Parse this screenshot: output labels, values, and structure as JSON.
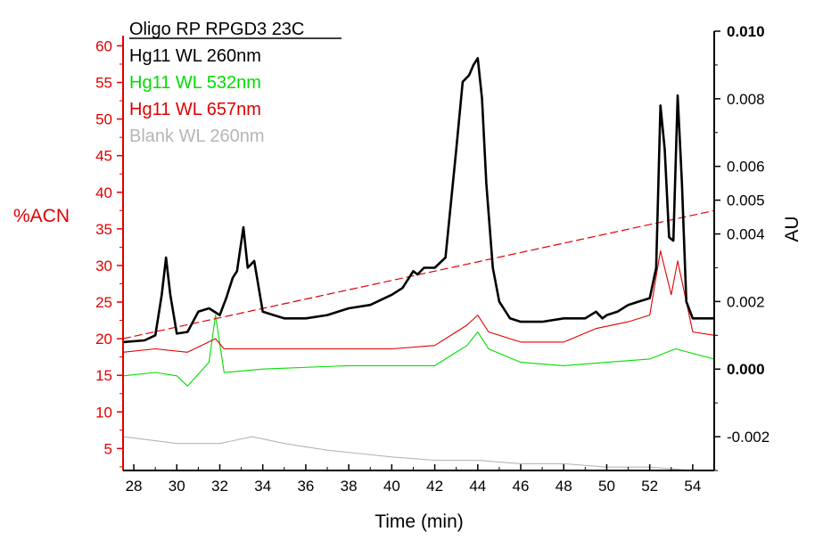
{
  "chart_data": {
    "type": "line",
    "title": "Oligo RP RPGD3 23C",
    "xlabel": "Time (min)",
    "ylabel_left": "%ACN",
    "ylabel_right": "AU",
    "xlim": [
      27.5,
      55
    ],
    "ylim_left": [
      2,
      62
    ],
    "ylim_right": [
      -0.003,
      0.01
    ],
    "x_ticks": [
      "28",
      "30",
      "32",
      "34",
      "36",
      "38",
      "40",
      "42",
      "44",
      "46",
      "48",
      "50",
      "52",
      "54"
    ],
    "y_left_ticks": [
      "5",
      "10",
      "15",
      "20",
      "25",
      "30",
      "35",
      "40",
      "45",
      "50",
      "55",
      "60"
    ],
    "y_right_ticks": [
      "-0.002",
      "0.000",
      "0.002",
      "0.004",
      "0.005",
      "0.006",
      "0.008",
      "0.010"
    ],
    "colors": {
      "left_axis": "#e00000",
      "right_axis": "#000000",
      "wl260": "#000000",
      "wl532": "#00dd00",
      "wl657": "#e00000",
      "blank": "#b5b5b5",
      "gradient": "#e00000"
    },
    "series": [
      {
        "name": "Hg11 WL 260nm",
        "axis": "right",
        "x": [
          27.5,
          28.5,
          29.0,
          29.3,
          29.5,
          29.7,
          30.0,
          30.5,
          31.0,
          31.5,
          32.0,
          32.3,
          32.6,
          32.8,
          33.1,
          33.3,
          33.6,
          34.0,
          34.5,
          35.0,
          36.0,
          37.0,
          38.0,
          39.0,
          40.0,
          40.5,
          41.0,
          41.2,
          41.5,
          42.0,
          42.5,
          43.0,
          43.3,
          43.6,
          43.8,
          44.0,
          44.2,
          44.4,
          44.7,
          45.0,
          45.5,
          46.0,
          47.0,
          48.0,
          49.0,
          49.5,
          49.8,
          50.0,
          50.5,
          51.0,
          51.5,
          52.0,
          52.3,
          52.5,
          52.7,
          52.9,
          53.1,
          53.3,
          53.5,
          53.7,
          54.0,
          54.5,
          55.0
        ],
        "y": [
          0.0008,
          0.00085,
          0.001,
          0.0022,
          0.0033,
          0.0022,
          0.00105,
          0.0011,
          0.0017,
          0.0018,
          0.0016,
          0.0021,
          0.0027,
          0.0029,
          0.0042,
          0.003,
          0.0032,
          0.0017,
          0.0016,
          0.0015,
          0.0015,
          0.0016,
          0.0018,
          0.0019,
          0.0022,
          0.0024,
          0.0029,
          0.0028,
          0.003,
          0.003,
          0.0033,
          0.0065,
          0.0085,
          0.0087,
          0.009,
          0.0092,
          0.008,
          0.0055,
          0.003,
          0.002,
          0.0015,
          0.0014,
          0.0014,
          0.0015,
          0.0015,
          0.0017,
          0.0015,
          0.0016,
          0.0017,
          0.0019,
          0.002,
          0.0021,
          0.003,
          0.0078,
          0.0065,
          0.0039,
          0.0038,
          0.0081,
          0.0055,
          0.002,
          0.0015,
          0.0015,
          0.0015
        ]
      },
      {
        "name": "Hg11 WL 532nm",
        "axis": "right",
        "x": [
          27.5,
          29.0,
          30.0,
          30.5,
          31.5,
          31.8,
          32.2,
          34.0,
          38.0,
          42.0,
          43.5,
          44.0,
          44.5,
          46.0,
          48.0,
          50.0,
          52.0,
          53.2,
          55.0
        ],
        "y": [
          -0.0002,
          -0.0001,
          -0.0002,
          -0.0005,
          0.0002,
          0.0016,
          -0.0001,
          0.0,
          0.0001,
          0.0001,
          0.0007,
          0.0011,
          0.0006,
          0.0002,
          0.0001,
          0.0002,
          0.0003,
          0.0006,
          0.0003
        ]
      },
      {
        "name": "Hg11 WL 657nm",
        "axis": "right",
        "x": [
          27.5,
          29.0,
          30.5,
          31.8,
          32.2,
          34.0,
          36.0,
          38.0,
          40.0,
          42.0,
          43.5,
          44.0,
          44.5,
          46.0,
          48.0,
          49.5,
          51.0,
          52.0,
          52.5,
          53.0,
          53.3,
          54.0,
          55.0
        ],
        "y": [
          0.0005,
          0.0006,
          0.0005,
          0.0009,
          0.0006,
          0.0006,
          0.0006,
          0.0006,
          0.0006,
          0.0007,
          0.0013,
          0.0016,
          0.0011,
          0.0008,
          0.0008,
          0.0012,
          0.0014,
          0.0016,
          0.0035,
          0.0022,
          0.0032,
          0.0011,
          0.001
        ]
      },
      {
        "name": "Blank WL 260nm",
        "axis": "right",
        "x": [
          27.5,
          30.0,
          32.0,
          33.5,
          35.0,
          37.0,
          38.5,
          40.0,
          42.0,
          44.0,
          46.0,
          48.0,
          50.0,
          52.0,
          54.0,
          55.0
        ],
        "y": [
          -0.002,
          -0.0022,
          -0.0022,
          -0.002,
          -0.0022,
          -0.0024,
          -0.0025,
          -0.0026,
          -0.0027,
          -0.0027,
          -0.0028,
          -0.0028,
          -0.0029,
          -0.0029,
          -0.003,
          -0.003
        ]
      },
      {
        "name": "%ACN gradient",
        "axis": "left",
        "style": "dashed",
        "x": [
          27.5,
          55.0
        ],
        "y": [
          20,
          37.5
        ]
      }
    ],
    "grid": false,
    "legend_placement": "top-left"
  }
}
